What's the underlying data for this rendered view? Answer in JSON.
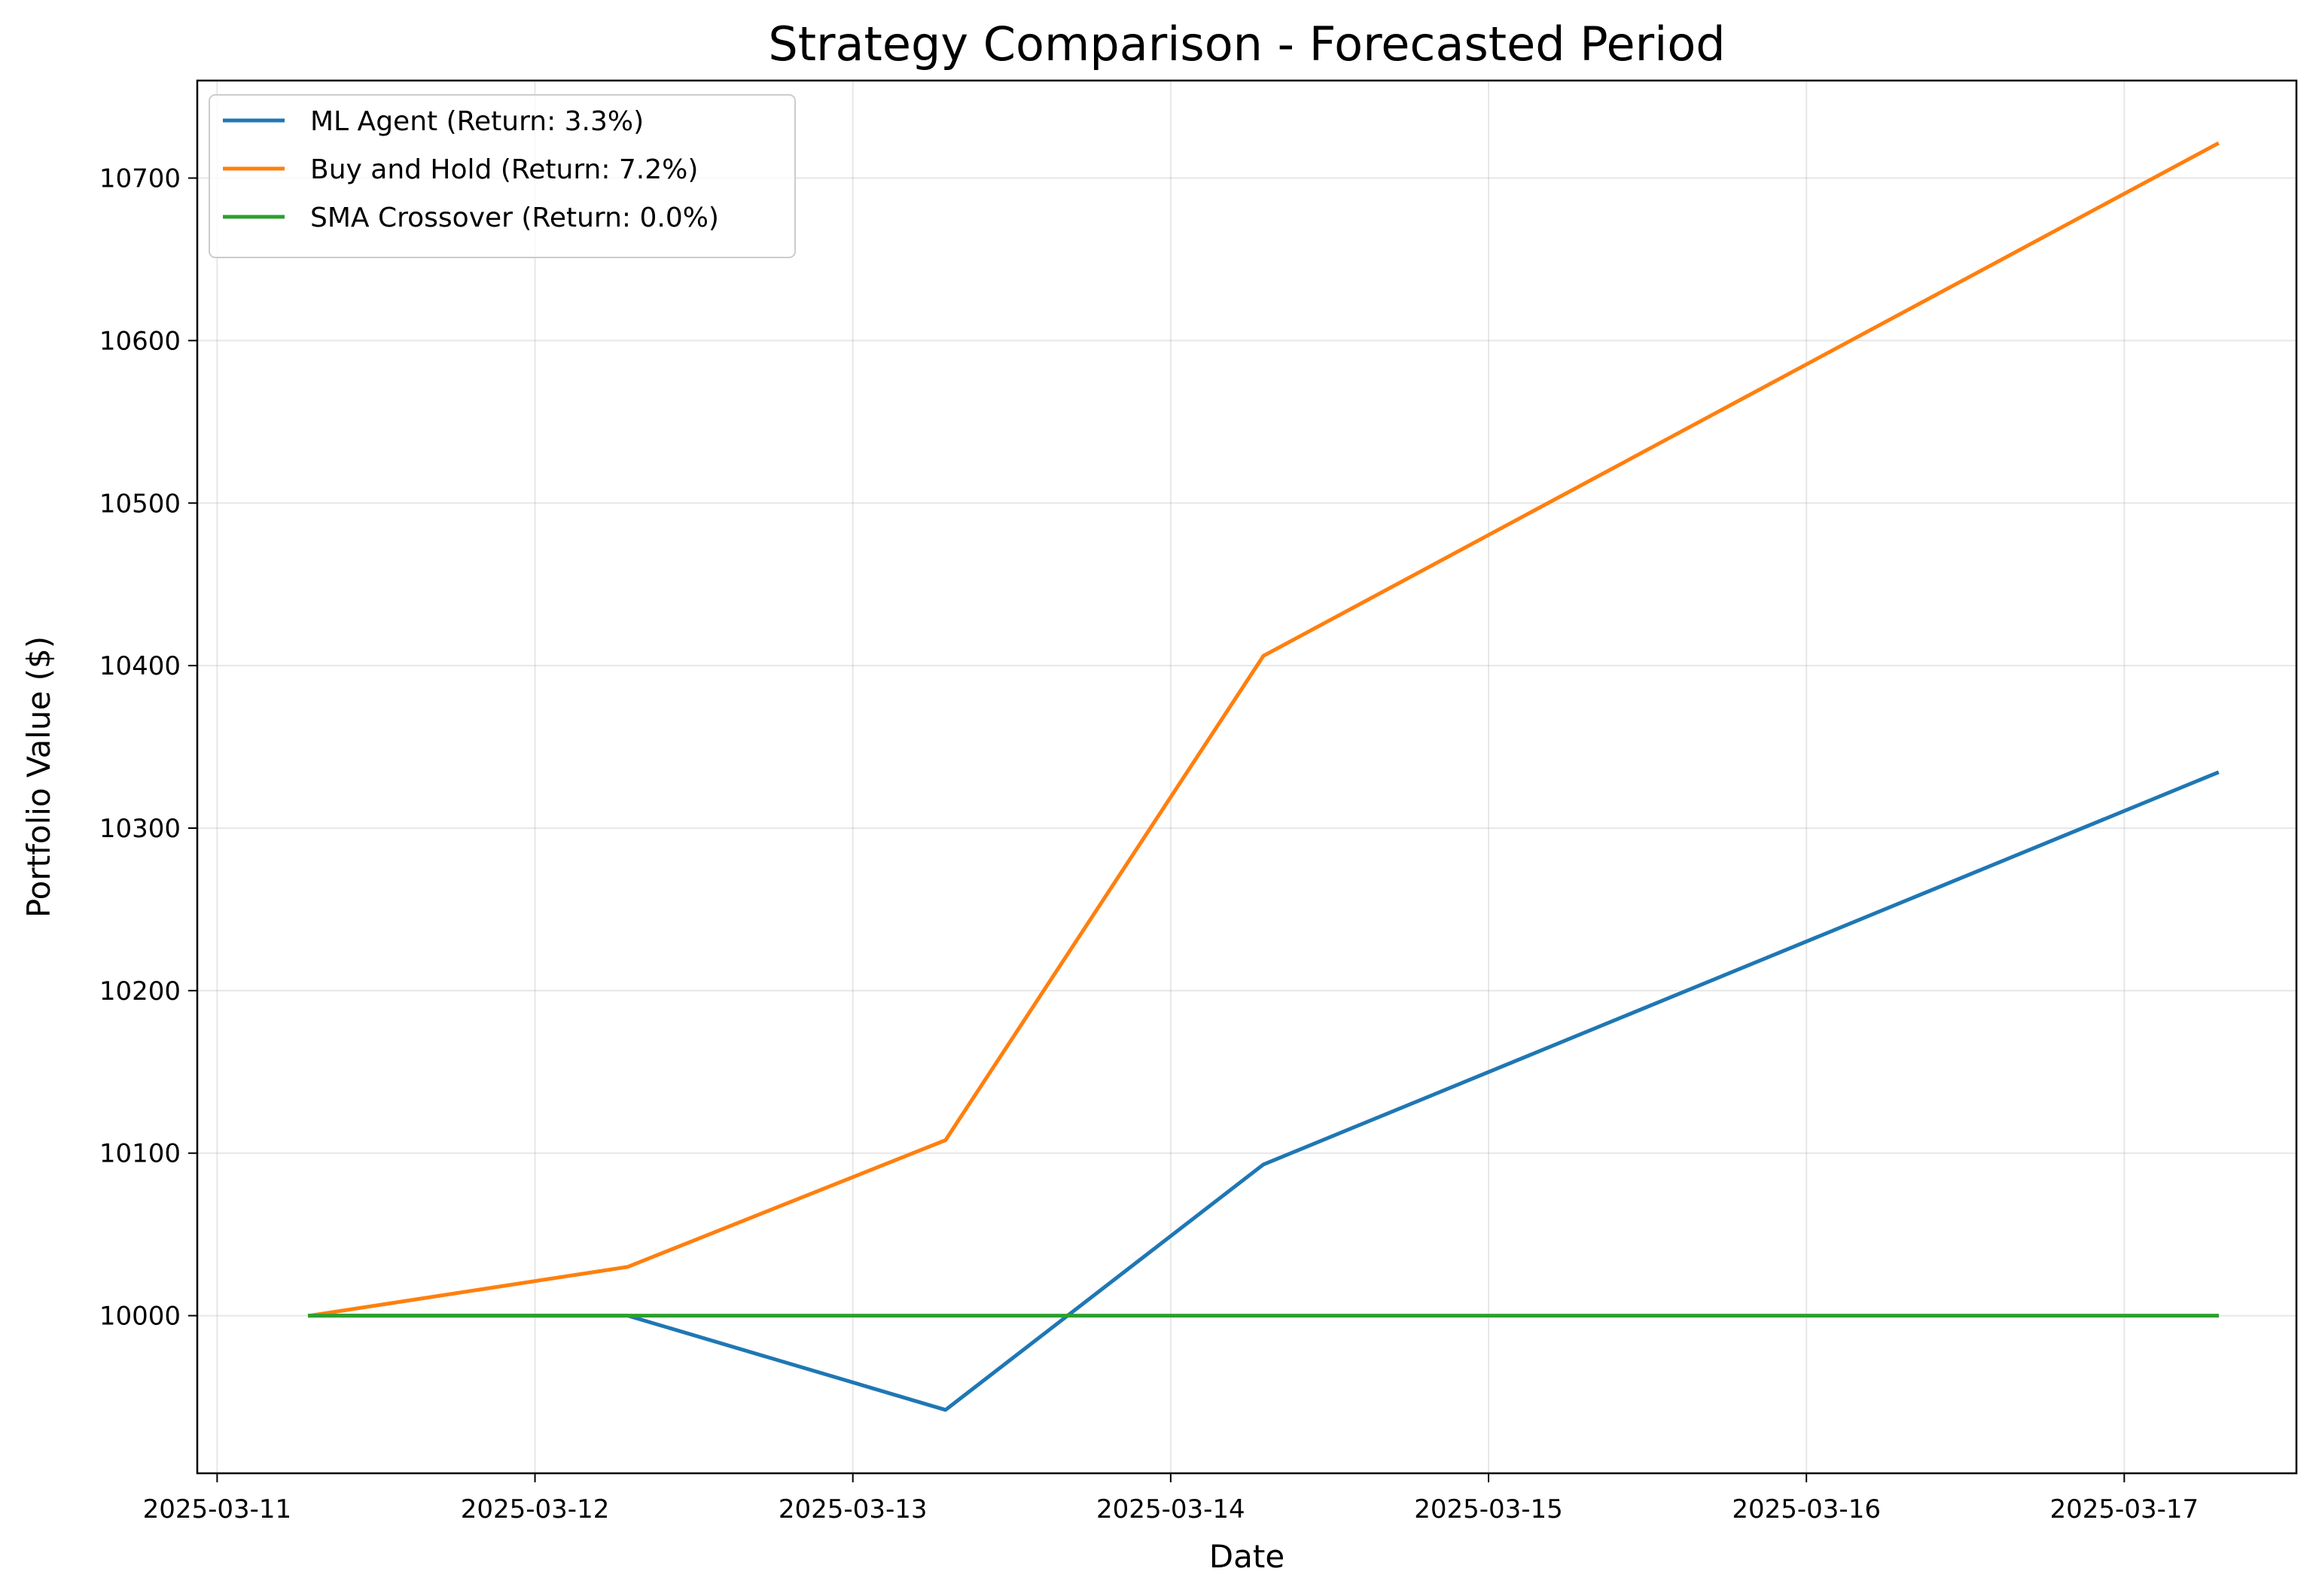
{
  "chart_data": {
    "type": "line",
    "title": "Strategy Comparison - Forecasted Period",
    "xlabel": "Date",
    "ylabel": "Portfolio Value ($)",
    "x": [
      "2025-03-11 07:00",
      "2025-03-12 07:00",
      "2025-03-13 07:00",
      "2025-03-14 07:00",
      "2025-03-17 07:00"
    ],
    "xlim": [
      "2025-03-10 22:30",
      "2025-03-17 13:00"
    ],
    "ylim": [
      9903,
      10760
    ],
    "x_ticks": [
      "2025-03-11",
      "2025-03-12",
      "2025-03-13",
      "2025-03-14",
      "2025-03-15",
      "2025-03-16",
      "2025-03-17"
    ],
    "y_ticks": [
      10000,
      10100,
      10200,
      10300,
      10400,
      10500,
      10600,
      10700
    ],
    "grid": true,
    "legend_position": "top-left",
    "series": [
      {
        "name": "ML Agent (Return: 3.3%)",
        "color": "#1f77b4",
        "values": [
          10000,
          10000,
          9942,
          10093,
          10334
        ]
      },
      {
        "name": "Buy and Hold (Return: 7.2%)",
        "color": "#ff7f0e",
        "values": [
          10000,
          10030,
          10108,
          10406,
          10721
        ]
      },
      {
        "name": "SMA Crossover (Return: 0.0%)",
        "color": "#2ca02c",
        "values": [
          10000,
          10000,
          10000,
          10000,
          10000
        ]
      }
    ]
  }
}
